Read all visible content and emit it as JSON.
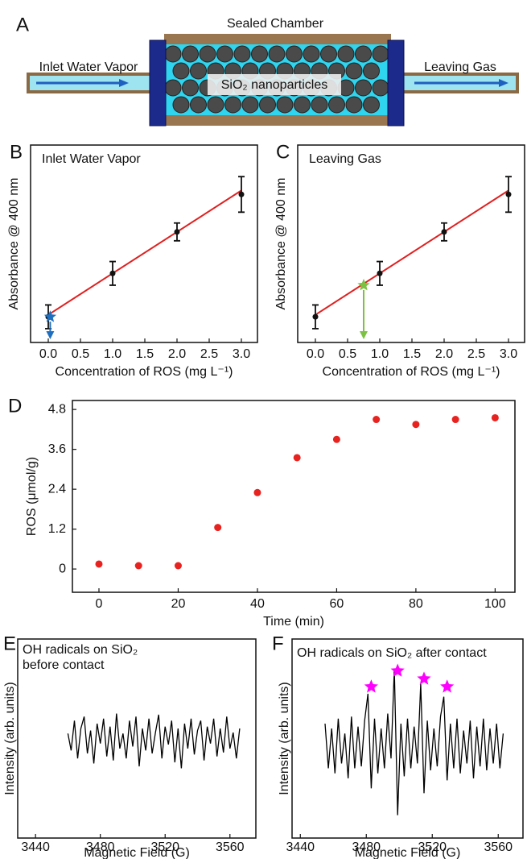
{
  "diagram": {
    "panel": "A",
    "chamber": "Sealed Chamber",
    "inlet": "Inlet Water Vapor",
    "outlet": "Leaving Gas",
    "particles": "SiO₂ nanoparticles"
  },
  "chart_data": [
    {
      "type": "scatter",
      "panel": "B",
      "title": "Inlet Water Vapor",
      "xlabel": "Concentration of ROS (mg L⁻¹)",
      "ylabel": "Absorbance @ 400 nm",
      "x": [
        0,
        1,
        2,
        3
      ],
      "values": [
        0.13,
        0.35,
        0.56,
        0.75
      ],
      "errors": [
        0.06,
        0.06,
        0.045,
        0.09
      ],
      "color": "#111111",
      "fit": {
        "x": [
          0,
          3
        ],
        "y": [
          0.14,
          0.77
        ],
        "color": "#e02020"
      },
      "marker": {
        "x": 0.03,
        "y": 0.13,
        "color": "#1f6fc0"
      },
      "xlim": [
        -0.275,
        3.25
      ],
      "ylim": [
        0,
        1
      ],
      "xticks": [
        {
          "value": 0,
          "label": "0.0"
        },
        0.5,
        {
          "value": 1,
          "label": "1.0"
        },
        1.5,
        {
          "value": 2,
          "label": "2.0"
        },
        2.5,
        {
          "value": 3,
          "label": "3.0"
        }
      ]
    },
    {
      "type": "scatter",
      "panel": "C",
      "title": "Leaving Gas",
      "xlabel": "Concentration of ROS (mg L⁻¹)",
      "ylabel": "Absorbance @ 400 nm",
      "x": [
        0,
        1,
        2,
        3
      ],
      "values": [
        0.13,
        0.35,
        0.56,
        0.75
      ],
      "errors": [
        0.06,
        0.06,
        0.045,
        0.09
      ],
      "color": "#111111",
      "fit": {
        "x": [
          0,
          3
        ],
        "y": [
          0.14,
          0.77
        ],
        "color": "#e02020"
      },
      "marker": {
        "x": 0.75,
        "y": 0.29,
        "color": "#7cc142"
      },
      "xlim": [
        -0.275,
        3.25
      ],
      "ylim": [
        0,
        1
      ],
      "xticks": [
        {
          "value": 0,
          "label": "0.0"
        },
        0.5,
        {
          "value": 1,
          "label": "1.0"
        },
        1.5,
        {
          "value": 2,
          "label": "2.0"
        },
        2.5,
        {
          "value": 3,
          "label": "3.0"
        }
      ]
    },
    {
      "type": "scatter",
      "panel": "D",
      "xlabel": "Time (min)",
      "ylabel": "ROS (μmol/g)",
      "x": [
        0,
        10,
        20,
        30,
        40,
        50,
        60,
        70,
        80,
        90,
        100
      ],
      "values": [
        0.15,
        0.1,
        0.1,
        1.25,
        2.3,
        3.35,
        3.9,
        4.5,
        4.35,
        4.5,
        4.55
      ],
      "color": "#e8231f",
      "xlim": [
        -6.7,
        105
      ],
      "ylim": [
        -0.7,
        5.07
      ],
      "xticks": [
        0,
        20,
        40,
        60,
        80,
        100
      ],
      "yticks": [
        0,
        1.2,
        2.4,
        3.6,
        4.8
      ]
    },
    {
      "type": "line",
      "panel": "E",
      "title": [
        "OH radicals on SiO₂",
        "before contact"
      ],
      "xlabel": "Magnetic Field (G)",
      "ylabel": "Intensity (arb. units)",
      "color": "#000000",
      "x": [
        3460,
        3462,
        3464,
        3466,
        3468,
        3470,
        3472,
        3474,
        3476,
        3478,
        3480,
        3482,
        3484,
        3486,
        3488,
        3490,
        3492,
        3494,
        3496,
        3498,
        3500,
        3502,
        3504,
        3506,
        3508,
        3510,
        3512,
        3514,
        3516,
        3518,
        3520,
        3522,
        3524,
        3526,
        3528,
        3530,
        3532,
        3534,
        3536,
        3538,
        3540,
        3542,
        3544,
        3546,
        3548,
        3550,
        3552,
        3554,
        3556,
        3558,
        3560,
        3562,
        3564,
        3566
      ],
      "values": [
        0.05,
        -0.12,
        0.18,
        -0.2,
        0.1,
        0.22,
        -0.15,
        0.08,
        -0.25,
        0.15,
        -0.05,
        0.2,
        -0.18,
        0.12,
        -0.22,
        0.25,
        -0.1,
        0.05,
        -0.2,
        0.18,
        -0.08,
        0.22,
        -0.28,
        0.1,
        -0.12,
        0.2,
        -0.15,
        0.06,
        0.24,
        -0.2,
        0.12,
        -0.06,
        0.18,
        -0.24,
        0.1,
        -0.3,
        0.15,
        -0.1,
        0.2,
        -0.16,
        0.08,
        0.18,
        -0.22,
        0.12,
        -0.05,
        0.2,
        -0.18,
        0.1,
        -0.14,
        0.22,
        -0.1,
        0.06,
        -0.2,
        0.1
      ],
      "xlim": [
        3429,
        3576
      ],
      "ylim": [
        -1,
        1
      ],
      "xticks": [
        3440,
        3480,
        3520,
        3560
      ]
    },
    {
      "type": "line",
      "panel": "F",
      "title": "OH radicals on SiO₂ after contact",
      "xlabel": "Magnetic Field (G)",
      "ylabel": "Intensity (arb. units)",
      "color": "#000000",
      "x": [
        3455,
        3457,
        3459,
        3461,
        3463,
        3465,
        3467,
        3469,
        3471,
        3473,
        3475,
        3477,
        3479,
        3481,
        3483,
        3485,
        3487,
        3489,
        3491,
        3493,
        3495,
        3497,
        3499,
        3501,
        3503,
        3505,
        3507,
        3509,
        3511,
        3513,
        3515,
        3517,
        3519,
        3521,
        3523,
        3525,
        3527,
        3529,
        3531,
        3533,
        3535,
        3537,
        3539,
        3541,
        3543,
        3545,
        3547,
        3549,
        3551,
        3553,
        3555,
        3557,
        3559,
        3561,
        3563
      ],
      "values": [
        0.15,
        -0.3,
        0.1,
        -0.35,
        0.2,
        -0.25,
        0.05,
        -0.4,
        0.22,
        -0.3,
        0.12,
        -0.28,
        0.18,
        0.45,
        -0.5,
        0.2,
        -0.35,
        0.1,
        -0.3,
        0.25,
        -0.2,
        0.7,
        -0.77,
        0.15,
        -0.38,
        0.2,
        -0.3,
        0.12,
        -0.25,
        0.55,
        -0.55,
        0.18,
        -0.32,
        0.1,
        -0.28,
        0.22,
        0.42,
        -0.42,
        0.15,
        -0.3,
        0.2,
        -0.35,
        0.08,
        -0.25,
        0.18,
        -0.4,
        0.12,
        -0.28,
        0.2,
        -0.32,
        0.1,
        -0.25,
        0.15,
        -0.3,
        0.05
      ],
      "stars": {
        "x": [
          3483,
          3499,
          3515,
          3529
        ],
        "y": [
          0.52,
          0.68,
          0.6,
          0.52
        ],
        "color": "#ff00ff"
      },
      "xlim": [
        3435,
        3575
      ],
      "ylim": [
        -1,
        1
      ],
      "xticks": [
        3440,
        3480,
        3520,
        3560
      ]
    }
  ]
}
